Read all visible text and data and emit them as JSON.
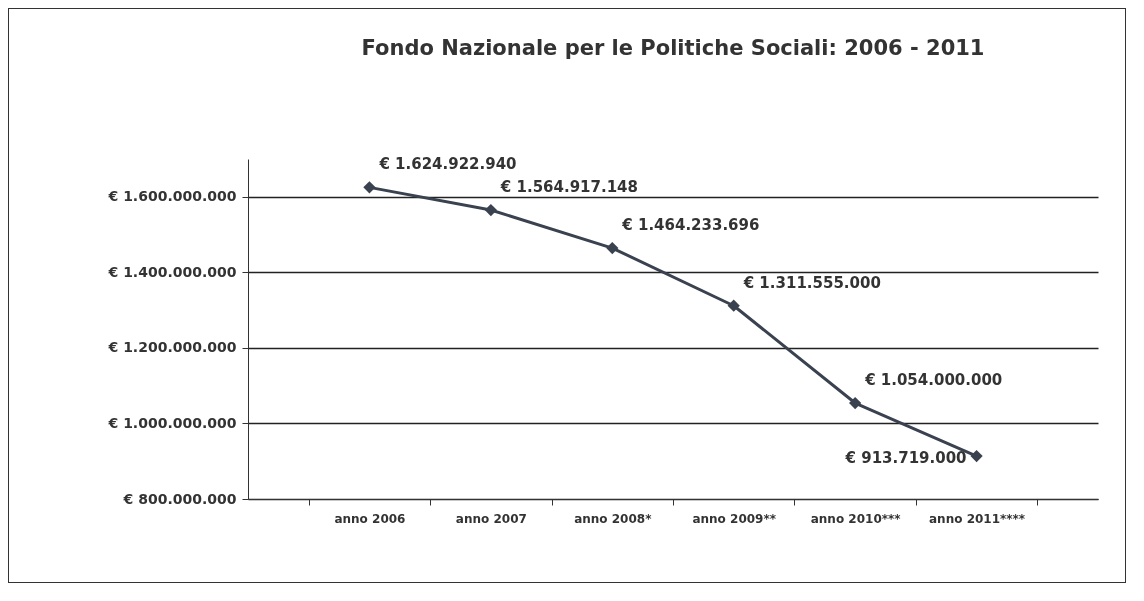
{
  "chart_data": {
    "type": "line",
    "title": "Fondo Nazionale per le Politiche Sociali: 2006 - 2011",
    "categories": [
      "anno 2006",
      "anno 2007",
      "anno 2008*",
      "anno 2009**",
      "anno 2010***",
      "anno 2011****"
    ],
    "series": [
      {
        "color": "#3a4250",
        "values": [
          1624922940,
          1564917148,
          1464233696,
          1311555000,
          1054000000,
          913719000
        ]
      }
    ],
    "value_labels": [
      "€ 1.624.922.940",
      "€ 1.564.917.148",
      "€ 1.464.233.696",
      "€ 1.311.555.000",
      "€ 1.054.000.000",
      "€ 913.719.000"
    ],
    "ylim": [
      800000000,
      1700000000
    ],
    "yticks": [
      {
        "value": 800000000,
        "label": "€ 800.000.000"
      },
      {
        "value": 1000000000,
        "label": "€ 1.000.000.000"
      },
      {
        "value": 1200000000,
        "label": "€ 1.200.000.000"
      },
      {
        "value": 1400000000,
        "label": "€ 1.400.000.000"
      },
      {
        "value": 1600000000,
        "label": "€ 1.600.000.000"
      }
    ],
    "grid": "y",
    "marker": "diamond",
    "line_style": "solid"
  }
}
